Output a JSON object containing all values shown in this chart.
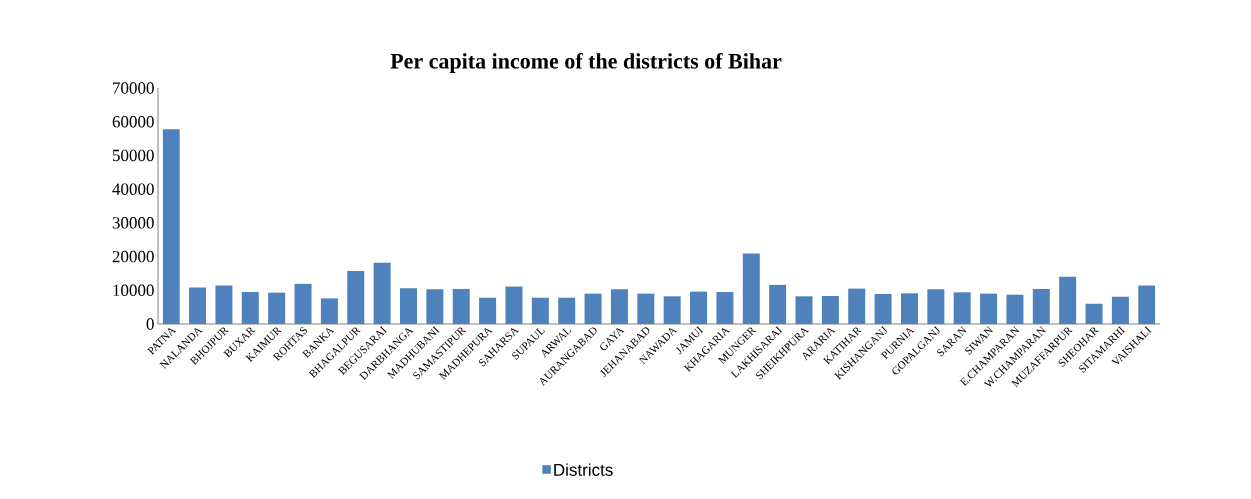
{
  "chart_data": {
    "type": "bar",
    "title": "Per capita income of the districts of Bihar",
    "categories": [
      "PATNA",
      "NALANDA",
      "BHOJPUR",
      "BUXAR",
      "KAIMUR",
      "ROHTAS",
      "BANKA",
      "BHAGALPUR",
      "BEGUSARAI",
      "DARBHANGA",
      "MADHUBANI",
      "SAMASTIPUR",
      "MADHEPURA",
      "SAHARSA",
      "SUPAUL",
      "ARWAL",
      "AURANGABAD",
      "GAYA",
      "JEHANABAD",
      "NAWADA",
      "JAMUI",
      "KHAGARIA",
      "MUNGER",
      "LAKHISARAI",
      "SHEIKHPURA",
      "ARARIA",
      "KATIHAR",
      "KISHANGANJ",
      "PURNIA",
      "GOPALGANJ",
      "SARAN",
      "SIWAN",
      "E.CHAMPARAN",
      "W.CHAMPARAN",
      "MUZAFFARPUR",
      "SHEOHAR",
      "SITAMARHI",
      "VAISHALI"
    ],
    "series": [
      {
        "name": "Districts",
        "color": "#4f81bd",
        "values": [
          57800,
          10800,
          11400,
          9500,
          9300,
          11900,
          7600,
          15700,
          18200,
          10600,
          10300,
          10400,
          7800,
          11100,
          7800,
          7800,
          9000,
          10300,
          9000,
          8200,
          9600,
          9500,
          20900,
          11600,
          8200,
          8300,
          10500,
          8900,
          9100,
          10300,
          9400,
          9000,
          8700,
          10400,
          14000,
          6000,
          8100,
          11400
        ]
      }
    ],
    "ylim": [
      0,
      70000
    ],
    "yticks": [
      0,
      10000,
      20000,
      30000,
      40000,
      50000,
      60000,
      70000
    ],
    "grid": false,
    "legend": "bottom"
  }
}
